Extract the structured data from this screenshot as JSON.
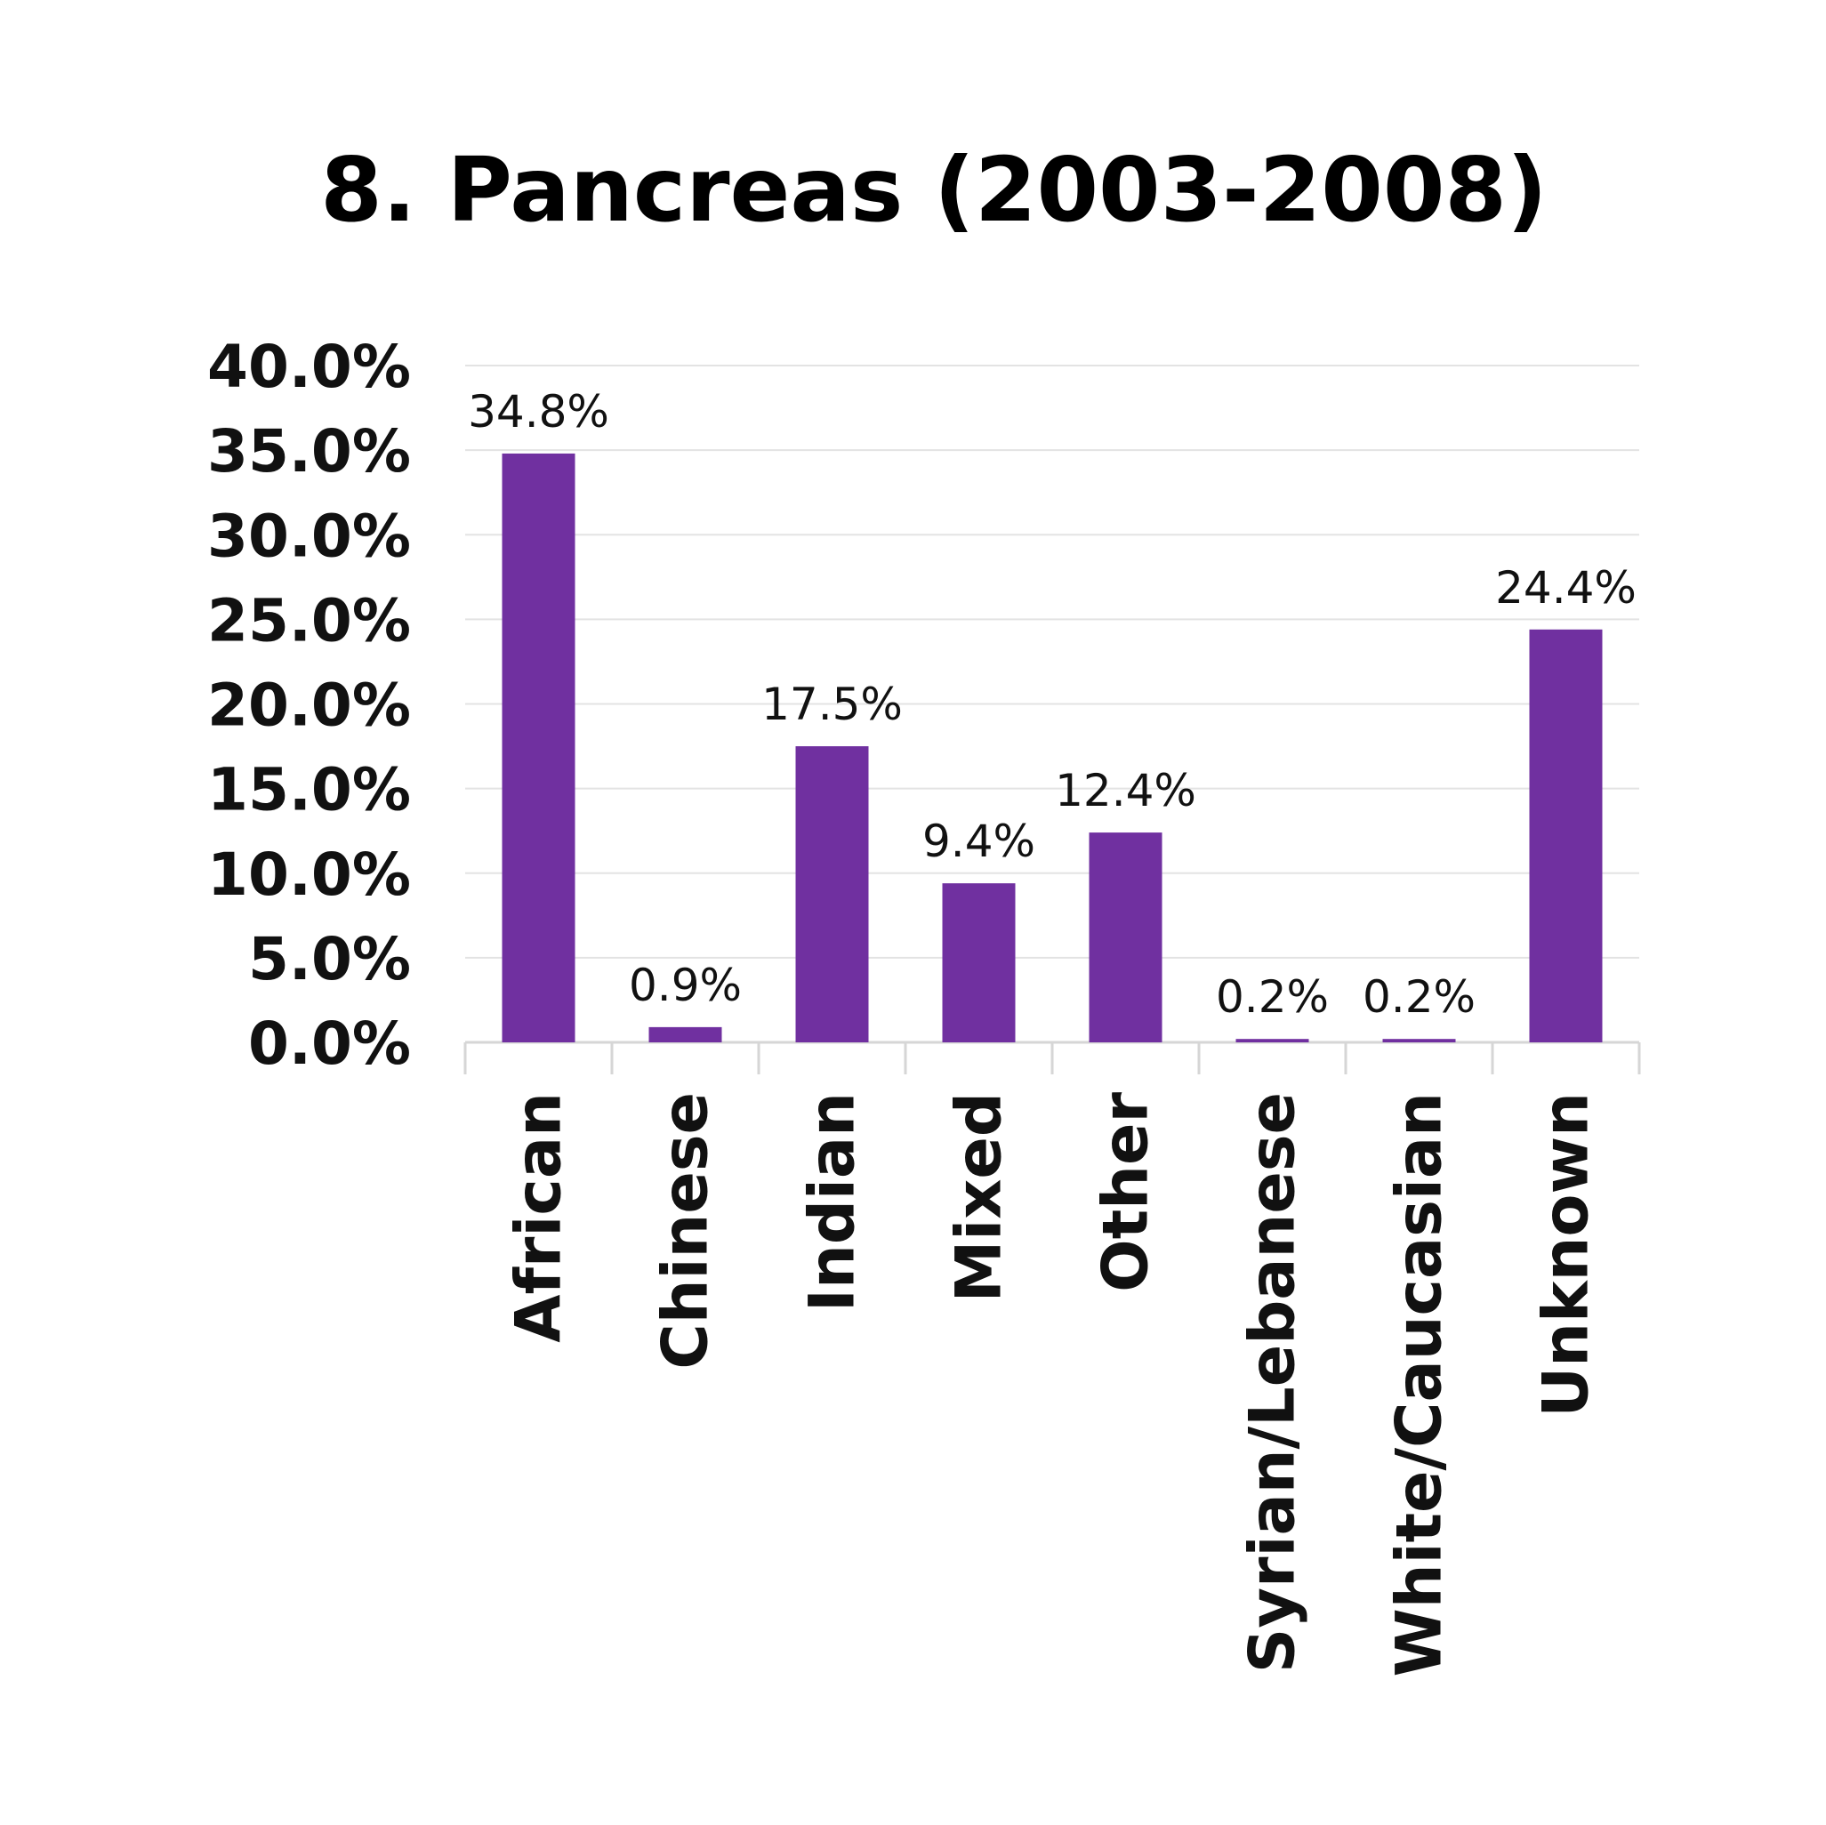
{
  "chart_data": {
    "type": "bar",
    "title": "8. Pancreas (2003-2008)",
    "xlabel": "",
    "ylabel": "",
    "categories": [
      "African",
      "Chinese",
      "Indian",
      "Mixed",
      "Other",
      "Syrian/Lebanese",
      "White/Caucasian",
      "Unknown"
    ],
    "values": [
      34.8,
      0.9,
      17.5,
      9.4,
      12.4,
      0.2,
      0.2,
      24.4
    ],
    "data_labels": [
      "34.8%",
      "0.9%",
      "17.5%",
      "9.4%",
      "12.4%",
      "0.2%",
      "0.2%",
      "24.4%"
    ],
    "ylim": [
      0,
      40
    ],
    "yticks": [
      "0.0%",
      "5.0%",
      "10.0%",
      "15.0%",
      "20.0%",
      "25.0%",
      "30.0%",
      "35.0%",
      "40.0%"
    ],
    "ytick_values": [
      0,
      5,
      10,
      15,
      20,
      25,
      30,
      35,
      40
    ],
    "grid": true,
    "legend": "none",
    "bar_color": "#7030a0",
    "x_tick_rotation": "vertical"
  }
}
